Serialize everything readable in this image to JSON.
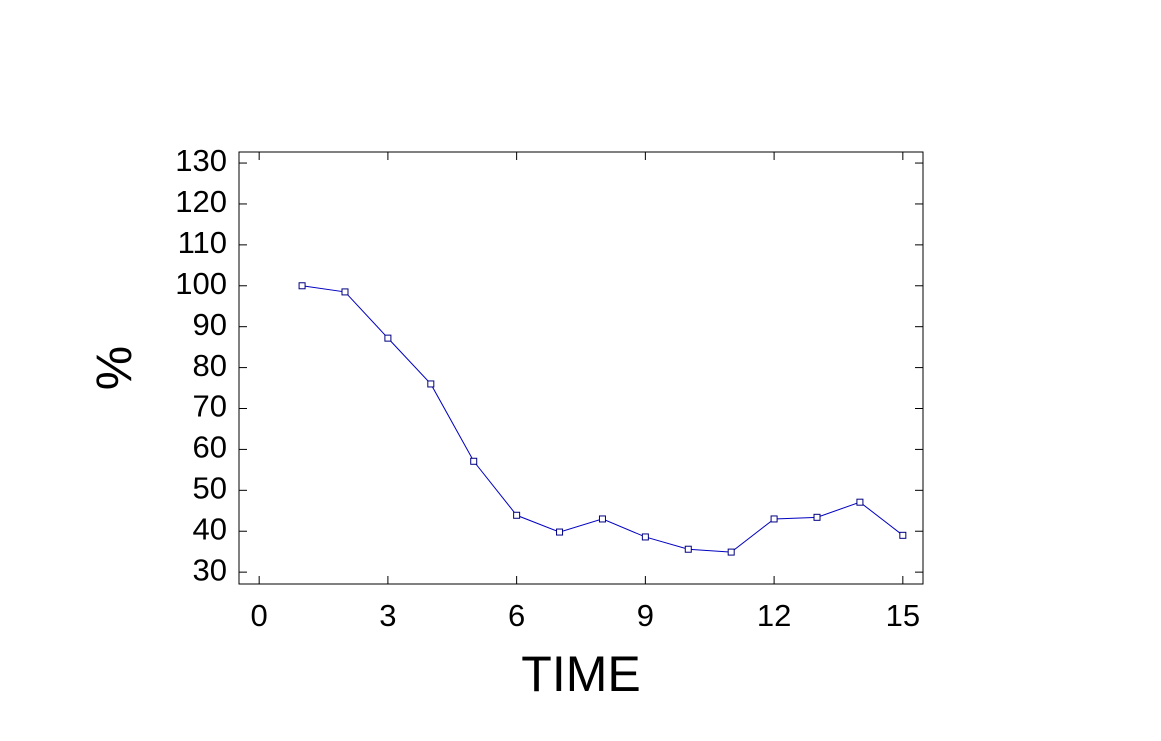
{
  "chart_data": {
    "type": "line",
    "x_label": "TIME",
    "y_label": "%",
    "x": [
      1,
      2,
      3,
      4,
      5,
      6,
      7,
      8,
      9,
      10,
      11,
      12,
      13,
      14,
      15
    ],
    "series": [
      {
        "color": "#0000c0",
        "values": [
          100,
          98.5,
          87.2,
          76,
          57.1,
          43.9,
          39.8,
          43,
          38.6,
          35.6,
          34.9,
          43,
          43.4,
          47.1,
          39
        ]
      }
    ],
    "xlim": [
      -0.47,
      15.47
    ],
    "xticks": [
      0,
      3,
      6,
      9,
      12,
      15
    ],
    "ylim": [
      27.1,
      132.7
    ],
    "yticks": [
      30,
      40,
      50,
      60,
      70,
      80,
      90,
      100,
      110,
      120,
      130
    ]
  }
}
